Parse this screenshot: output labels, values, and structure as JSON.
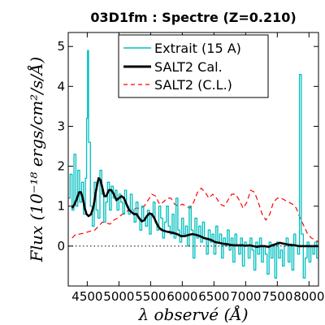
{
  "chart_data": {
    "type": "line",
    "title": "03D1fm : Spectre (Z=0.210)",
    "xlabel": "λ observé (Å)",
    "ylabel": "Flux (10⁻¹⁸ ergs/cm²/s/Å)",
    "xlim": [
      4200,
      8150
    ],
    "ylim": [
      -1,
      5.35
    ],
    "xticks": [
      4500,
      5000,
      5500,
      6000,
      6500,
      7000,
      7500,
      8000
    ],
    "yticks": [
      0,
      1,
      2,
      3,
      4,
      5
    ],
    "grid": false,
    "legend_position": "top-center",
    "zero_line": true,
    "series": [
      {
        "name": "Extrait (15 A)",
        "color": "#00bfbf",
        "style": "solid-step",
        "x": [
          4200,
          4230,
          4260,
          4290,
          4320,
          4350,
          4380,
          4410,
          4440,
          4470,
          4490,
          4505,
          4520,
          4550,
          4580,
          4610,
          4640,
          4670,
          4700,
          4730,
          4760,
          4790,
          4820,
          4850,
          4880,
          4910,
          4940,
          4970,
          5000,
          5030,
          5060,
          5090,
          5120,
          5150,
          5180,
          5210,
          5240,
          5270,
          5300,
          5330,
          5360,
          5390,
          5420,
          5450,
          5480,
          5510,
          5540,
          5570,
          5600,
          5630,
          5660,
          5690,
          5720,
          5750,
          5780,
          5810,
          5840,
          5870,
          5900,
          5930,
          5960,
          5990,
          6020,
          6050,
          6080,
          6110,
          6140,
          6170,
          6200,
          6230,
          6260,
          6290,
          6320,
          6350,
          6380,
          6410,
          6440,
          6470,
          6500,
          6530,
          6560,
          6590,
          6620,
          6650,
          6680,
          6710,
          6740,
          6770,
          6800,
          6830,
          6860,
          6890,
          6920,
          6950,
          6980,
          7010,
          7040,
          7070,
          7100,
          7130,
          7160,
          7190,
          7220,
          7250,
          7280,
          7310,
          7340,
          7370,
          7400,
          7430,
          7460,
          7490,
          7520,
          7550,
          7580,
          7610,
          7640,
          7670,
          7700,
          7730,
          7760,
          7790,
          7820,
          7850,
          7880,
          7910,
          7940,
          7970,
          8000,
          8030,
          8060,
          8090,
          8120,
          8150
        ],
        "y": [
          1.2,
          1.8,
          0.9,
          2.3,
          1.0,
          1.9,
          1.1,
          1.6,
          0.8,
          1.7,
          3.2,
          4.9,
          2.6,
          1.0,
          0.5,
          1.6,
          0.9,
          0.7,
          1.9,
          1.3,
          0.6,
          1.1,
          1.6,
          0.9,
          1.5,
          1.2,
          1.4,
          0.9,
          1.3,
          1.1,
          0.8,
          1.4,
          1.0,
          0.8,
          1.3,
          0.9,
          0.6,
          1.1,
          0.7,
          0.4,
          1.0,
          0.7,
          0.5,
          0.9,
          0.3,
          0.8,
          1.1,
          0.6,
          0.4,
          1.0,
          0.7,
          0.2,
          0.6,
          1.0,
          0.5,
          0.3,
          0.8,
          0.2,
          1.2,
          0.4,
          0.1,
          0.7,
          0.3,
          0.5,
          0.0,
          1.0,
          0.4,
          -0.3,
          0.7,
          0.2,
          0.5,
          0.1,
          0.6,
          0.2,
          -0.2,
          0.4,
          0.1,
          0.3,
          -0.2,
          0.5,
          0.1,
          0.3,
          -0.3,
          0.2,
          0.0,
          0.4,
          -0.1,
          0.2,
          -0.4,
          0.3,
          0.0,
          -0.2,
          0.2,
          -0.5,
          0.1,
          0.0,
          -0.3,
          0.2,
          -0.1,
          -0.6,
          0.1,
          -0.2,
          0.2,
          -0.4,
          0.0,
          -0.2,
          -0.7,
          0.1,
          -0.3,
          0.0,
          -0.8,
          0.1,
          -0.3,
          -0.1,
          -0.5,
          0.0,
          0.2,
          -0.4,
          0.0,
          -0.6,
          0.3,
          0.0,
          -0.2,
          4.3,
          0.3,
          -0.8,
          -0.3,
          0.1,
          -0.4,
          0.0,
          -0.2,
          0.1,
          -0.3,
          0.0
        ]
      },
      {
        "name": "SALT2 Cal.",
        "color": "#000000",
        "style": "solid-thick",
        "x": [
          4260,
          4300,
          4340,
          4370,
          4400,
          4430,
          4460,
          4490,
          4520,
          4560,
          4600,
          4640,
          4680,
          4710,
          4740,
          4770,
          4800,
          4840,
          4880,
          4920,
          4960,
          5000,
          5040,
          5080,
          5120,
          5160,
          5200,
          5240,
          5280,
          5320,
          5360,
          5400,
          5440,
          5480,
          5520,
          5560,
          5600,
          5640,
          5680,
          5720,
          5760,
          5800,
          5860,
          5920,
          5980,
          6040,
          6100,
          6160,
          6220,
          6280,
          6340,
          6400,
          6460,
          6520,
          6580,
          6640,
          6700,
          6760,
          6820,
          6880,
          6940,
          7000,
          7060,
          7120,
          7180,
          7240,
          7300,
          7360,
          7420,
          7480,
          7540,
          7600,
          7660,
          7720,
          7780,
          7840,
          7900,
          7960,
          8020,
          8080,
          8150
        ],
        "y": [
          0.95,
          1.05,
          1.2,
          1.35,
          1.35,
          1.2,
          0.95,
          0.8,
          0.75,
          0.8,
          1.0,
          1.4,
          1.7,
          1.65,
          1.45,
          1.25,
          1.25,
          1.4,
          1.4,
          1.3,
          1.15,
          1.2,
          1.25,
          1.2,
          1.05,
          0.9,
          0.85,
          0.8,
          0.8,
          0.7,
          0.62,
          0.65,
          0.75,
          0.82,
          0.8,
          0.7,
          0.55,
          0.45,
          0.4,
          0.38,
          0.36,
          0.35,
          0.33,
          0.3,
          0.25,
          0.25,
          0.28,
          0.3,
          0.28,
          0.25,
          0.2,
          0.18,
          0.15,
          0.1,
          0.08,
          0.06,
          0.05,
          0.03,
          0.02,
          0.02,
          0.02,
          0.01,
          0.02,
          0.0,
          -0.02,
          0.0,
          0.0,
          -0.02,
          0.02,
          0.05,
          0.08,
          0.06,
          0.04,
          0.03,
          0.02,
          0.0,
          0.0,
          0.0,
          0.0,
          0.0,
          0.0
        ]
      },
      {
        "name": "SALT2 (C.L.)",
        "color": "#ff0000",
        "style": "dashed",
        "x": [
          4260,
          4320,
          4380,
          4440,
          4500,
          4560,
          4620,
          4680,
          4740,
          4800,
          4860,
          4920,
          4980,
          5040,
          5100,
          5160,
          5220,
          5280,
          5340,
          5400,
          5460,
          5520,
          5580,
          5640,
          5700,
          5760,
          5820,
          5880,
          5940,
          6000,
          6060,
          6120,
          6180,
          6240,
          6300,
          6360,
          6420,
          6480,
          6540,
          6600,
          6660,
          6720,
          6780,
          6840,
          6900,
          6960,
          7020,
          7080,
          7140,
          7200,
          7260,
          7320,
          7380,
          7440,
          7500,
          7560,
          7620,
          7680,
          7740,
          7800,
          7860,
          7920,
          7980,
          8040,
          8100,
          8150
        ],
        "y": [
          0.2,
          0.3,
          0.3,
          0.32,
          0.35,
          0.38,
          0.4,
          0.5,
          0.6,
          0.58,
          0.55,
          0.65,
          0.7,
          0.78,
          0.85,
          0.9,
          0.92,
          0.95,
          0.95,
          1.0,
          1.15,
          1.3,
          1.25,
          1.05,
          1.1,
          1.2,
          1.2,
          1.05,
          1.0,
          1.05,
          1.0,
          0.95,
          1.1,
          1.35,
          1.45,
          1.35,
          1.2,
          1.3,
          1.2,
          1.05,
          1.0,
          1.15,
          1.3,
          1.3,
          1.15,
          0.95,
          1.1,
          1.4,
          1.35,
          1.1,
          0.8,
          0.65,
          0.8,
          1.1,
          1.2,
          1.2,
          1.15,
          1.1,
          1.05,
          0.95,
          0.7,
          0.5,
          0.3,
          0.2,
          0.15,
          0.1
        ]
      }
    ]
  }
}
